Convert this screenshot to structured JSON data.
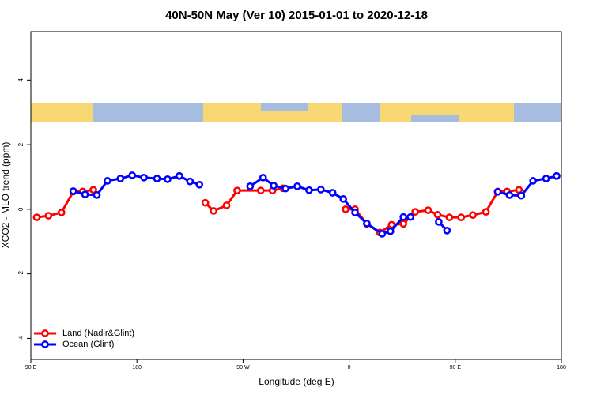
{
  "chart_data": {
    "type": "line",
    "title": "40N-50N May (Ver 10)   2015-01-01 to 2020-12-18",
    "x_label": "Longitude (deg E)",
    "y_label": "XCO2 - MLO trend (ppm)",
    "xlim": [
      90,
      540
    ],
    "xticks": [
      {
        "value": 90,
        "label": "90 E"
      },
      {
        "value": 180,
        "label": "180"
      },
      {
        "value": 270,
        "label": "90 W"
      },
      {
        "value": 360,
        "label": "0"
      },
      {
        "value": 450,
        "label": "90 E"
      },
      {
        "value": 540,
        "label": "180"
      }
    ],
    "ylim": [
      -4.65,
      5.5
    ],
    "yticks": [
      -4,
      -2,
      0,
      2,
      4
    ],
    "legend": "bottom-left",
    "series": [
      {
        "name": "Land (Nadir&Glint)",
        "color": "#ff0000",
        "x": [
          95,
          105,
          116,
          126,
          134,
          143,
          null,
          238,
          245,
          256,
          265,
          285,
          295,
          304,
          null,
          357,
          365,
          375,
          386,
          396,
          406,
          416,
          427,
          435,
          445,
          455,
          465,
          476,
          486,
          494,
          504
        ],
        "values": [
          -0.25,
          -0.2,
          -0.1,
          0.55,
          0.55,
          0.6,
          null,
          0.2,
          -0.05,
          0.12,
          0.58,
          0.58,
          0.58,
          0.65,
          null,
          0.0,
          0.0,
          -0.45,
          -0.72,
          -0.48,
          -0.45,
          -0.08,
          -0.03,
          -0.17,
          -0.25,
          -0.25,
          -0.18,
          -0.08,
          0.55,
          0.55,
          0.6
        ]
      },
      {
        "name": "Ocean (Glint)",
        "color": "#0000ff",
        "x": [
          126,
          136,
          146,
          155,
          166,
          176,
          186,
          197,
          206,
          216,
          225,
          233,
          null,
          276,
          287,
          296,
          306,
          316,
          326,
          336,
          346,
          355,
          365,
          375,
          388,
          395,
          406,
          412,
          null,
          436,
          443,
          null,
          486,
          496,
          506,
          516,
          527,
          536
        ],
        "values": [
          0.56,
          0.46,
          0.44,
          0.88,
          0.95,
          1.05,
          0.98,
          0.95,
          0.93,
          1.03,
          0.86,
          0.76,
          null,
          0.71,
          0.98,
          0.73,
          0.64,
          0.71,
          0.59,
          0.61,
          0.51,
          0.32,
          -0.1,
          -0.44,
          -0.76,
          -0.68,
          -0.24,
          -0.24,
          null,
          -0.39,
          -0.66,
          null,
          0.54,
          0.44,
          0.42,
          0.88,
          0.95,
          1.03
        ]
      }
    ]
  }
}
